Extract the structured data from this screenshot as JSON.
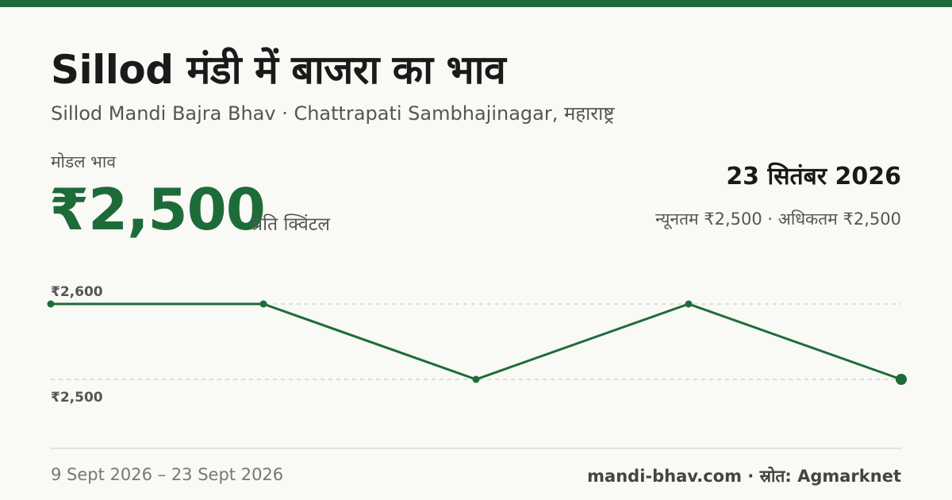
{
  "header": {
    "title": "Sillod मंडी में बाजरा का भाव",
    "subtitle": "Sillod Mandi Bajra Bhav · Chattrapati Sambhajinagar, महाराष्ट्र"
  },
  "summary": {
    "modal_label": "मोडल भाव",
    "modal_price": "₹2,500",
    "unit": "प्रति क्विंटल",
    "date": "23 सितंबर 2026",
    "range": "न्यूनतम ₹2,500 · अधिकतम ₹2,500"
  },
  "colors": {
    "accent": "#1e6b3a",
    "background": "#f9f9f5",
    "grid": "#cfcfc8"
  },
  "chart_data": {
    "type": "line",
    "values": [
      2600,
      2600,
      2500,
      2600,
      2500
    ],
    "ylim": [
      2500,
      2600
    ],
    "y_ticks": [
      {
        "value": 2600,
        "label": "₹2,600"
      },
      {
        "value": 2500,
        "label": "₹2,500"
      }
    ],
    "grid": true,
    "xlabel": "",
    "ylabel": ""
  },
  "footer": {
    "date_range": "9 Sept 2026 – 23 Sept 2026",
    "source": "mandi-bhav.com · स्रोत: Agmarknet"
  }
}
